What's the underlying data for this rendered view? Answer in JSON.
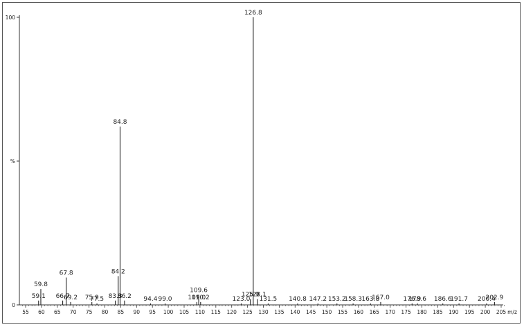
{
  "chart_data": {
    "type": "bar",
    "xlabel": "m/z",
    "ylabel": "%",
    "xlim": [
      54,
      206
    ],
    "ylim": [
      0,
      100
    ],
    "xticks": [
      55,
      60,
      65,
      70,
      75,
      80,
      85,
      90,
      95,
      100,
      105,
      110,
      115,
      120,
      125,
      130,
      135,
      140,
      145,
      150,
      155,
      160,
      165,
      170,
      175,
      180,
      185,
      190,
      195,
      200,
      205
    ],
    "yticks": [
      {
        "value": 0,
        "label": "0"
      },
      {
        "value": 50,
        "label": "%"
      },
      {
        "value": 100,
        "label": "100"
      }
    ],
    "peaks": [
      {
        "x": 59.1,
        "y": 1.5,
        "label": "59.1"
      },
      {
        "x": 59.8,
        "y": 5.5,
        "label": "59.8"
      },
      {
        "x": 66.7,
        "y": 1.5,
        "label": "66.7"
      },
      {
        "x": 67.8,
        "y": 9.5,
        "label": "67.8"
      },
      {
        "x": 69.2,
        "y": 1.0,
        "label": "69.2"
      },
      {
        "x": 75.9,
        "y": 1.0,
        "label": "75.9"
      },
      {
        "x": 77.5,
        "y": 0.5,
        "label": "77.5"
      },
      {
        "x": 83.3,
        "y": 1.5,
        "label": "83.3"
      },
      {
        "x": 84.2,
        "y": 10.0,
        "label": "84.2"
      },
      {
        "x": 84.8,
        "y": 62.0,
        "label": "84.8"
      },
      {
        "x": 86.2,
        "y": 1.5,
        "label": "86.2"
      },
      {
        "x": 94.4,
        "y": 0.5,
        "label": "94.4"
      },
      {
        "x": 99.0,
        "y": 0.5,
        "label": "99.0"
      },
      {
        "x": 109.0,
        "y": 1.0,
        "label": "109.0"
      },
      {
        "x": 109.6,
        "y": 3.5,
        "label": "109.6"
      },
      {
        "x": 110.2,
        "y": 1.0,
        "label": "110.2"
      },
      {
        "x": 123.0,
        "y": 0.5,
        "label": "123.0"
      },
      {
        "x": 125.9,
        "y": 2.0,
        "label": "125.9"
      },
      {
        "x": 126.8,
        "y": 100.0,
        "label": "126.8"
      },
      {
        "x": 128.1,
        "y": 2.0,
        "label": "128.1"
      },
      {
        "x": 131.5,
        "y": 0.5,
        "label": "131.5"
      },
      {
        "x": 140.8,
        "y": 0.5,
        "label": "140.8"
      },
      {
        "x": 147.2,
        "y": 0.5,
        "label": "147.2"
      },
      {
        "x": 153.2,
        "y": 0.5,
        "label": "153.2"
      },
      {
        "x": 158.3,
        "y": 0.5,
        "label": "158.3"
      },
      {
        "x": 163.8,
        "y": 0.5,
        "label": "163.8"
      },
      {
        "x": 167.0,
        "y": 1.0,
        "label": "167.0"
      },
      {
        "x": 176.9,
        "y": 0.5,
        "label": "176.9"
      },
      {
        "x": 178.6,
        "y": 0.5,
        "label": "178.6"
      },
      {
        "x": 186.6,
        "y": 0.5,
        "label": "186.6"
      },
      {
        "x": 191.7,
        "y": 0.5,
        "label": "191.7"
      },
      {
        "x": 200.4,
        "y": 0.5,
        "label": "200.4"
      },
      {
        "x": 202.9,
        "y": 1.0,
        "label": "202.9"
      }
    ]
  }
}
